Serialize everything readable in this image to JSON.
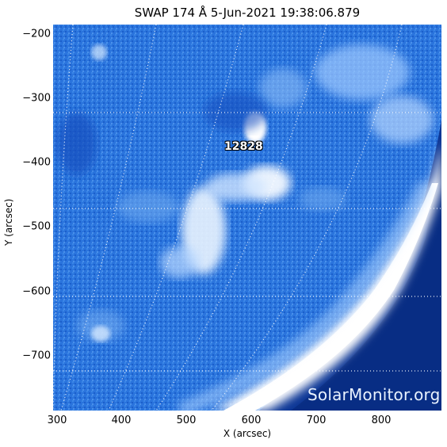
{
  "title": "SWAP 174 Å  5-Jun-2021 19:38:06.879",
  "x_axis": {
    "label": "X (arcsec)",
    "ticks": [
      "300",
      "400",
      "500",
      "600",
      "700",
      "800"
    ]
  },
  "y_axis": {
    "label": "Y (arcsec)",
    "ticks": [
      "−200",
      "−300",
      "−400",
      "−500",
      "−600",
      "−700"
    ]
  },
  "active_region": "12828",
  "watermark": "SolarMonitor.org",
  "colors": {
    "background": "#1e6ad6",
    "limb": "#ffffff",
    "space": "#0a2f8a",
    "grid": "#ffffff"
  }
}
